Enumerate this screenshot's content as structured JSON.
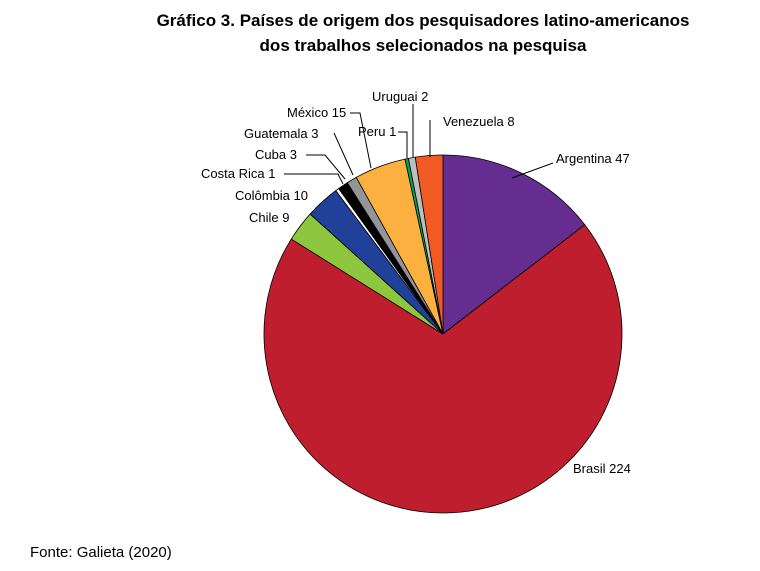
{
  "title": {
    "line1": "Gráfico 3. Países de origem dos pesquisadores latino-americanos",
    "line2": "dos trabalhos selecionados na pesquisa"
  },
  "source": "Fonte: Galieta (2020)",
  "chart_data": {
    "type": "pie",
    "title": "Gráfico 3. Países de origem dos pesquisadores latino-americanos dos trabalhos selecionados na pesquisa",
    "slices": [
      {
        "name": "Argentina",
        "value": 47,
        "label": "Argentina 47",
        "color": "#662d91"
      },
      {
        "name": "Brasil",
        "value": 224,
        "label": "Brasil 224",
        "color": "#be1e2d"
      },
      {
        "name": "Chile",
        "value": 9,
        "label": "Chile 9",
        "color": "#8dc63f"
      },
      {
        "name": "Colômbia",
        "value": 10,
        "label": "Colômbia 10",
        "color": "#21409a"
      },
      {
        "name": "Costa Rica",
        "value": 1,
        "label": "Costa Rica 1",
        "color": "#ffffff"
      },
      {
        "name": "Cuba",
        "value": 3,
        "label": "Cuba 3",
        "color": "#000000"
      },
      {
        "name": "Guatemala",
        "value": 3,
        "label": "Guatemala 3",
        "color": "#939598"
      },
      {
        "name": "México",
        "value": 15,
        "label": "México 15",
        "color": "#fbb040"
      },
      {
        "name": "Peru",
        "value": 1,
        "label": "Peru 1",
        "color": "#00a651"
      },
      {
        "name": "Uruguai",
        "value": 2,
        "label": "Uruguai 2",
        "color": "#bcbec0"
      },
      {
        "name": "Venezuela",
        "value": 8,
        "label": "Venezuela 8",
        "color": "#f15a22"
      }
    ]
  }
}
